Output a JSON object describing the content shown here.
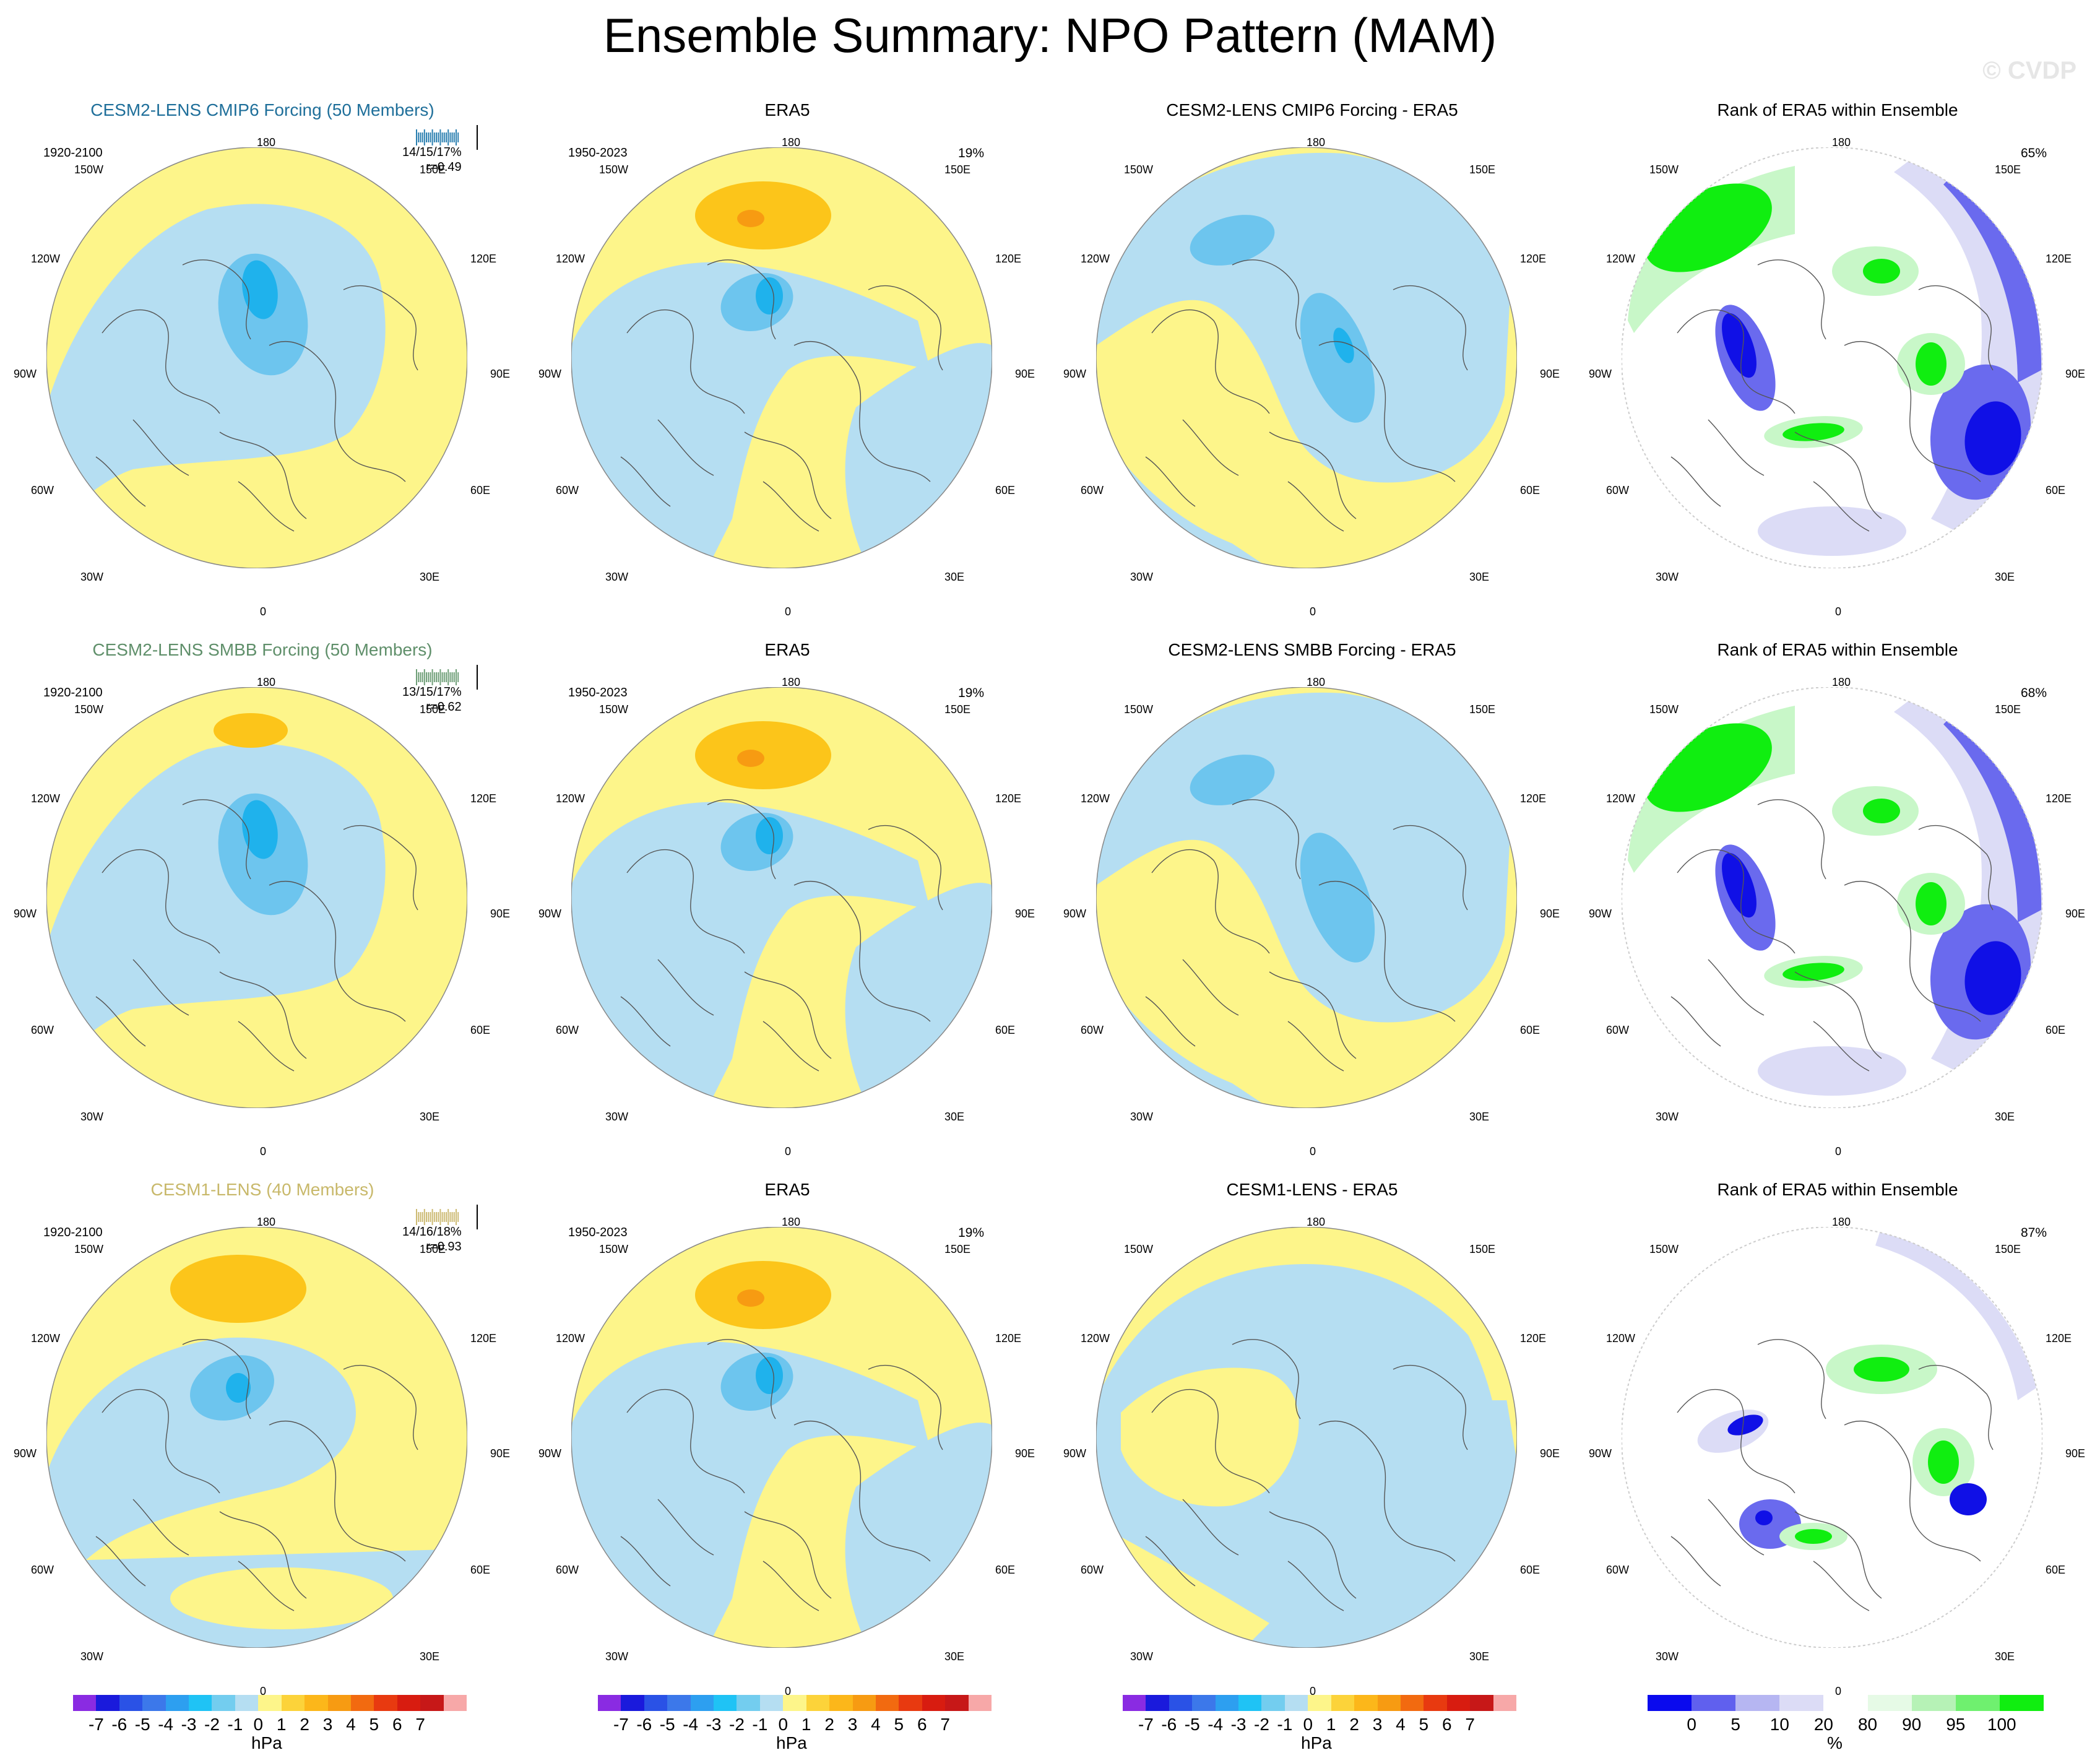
{
  "header": {
    "title": "Ensemble Summary: NPO Pattern (MAM)",
    "watermark": "© CVDP"
  },
  "colors": {
    "land_yellow": "#fdf58a",
    "light_blue": "#b5def2",
    "mid_blue": "#6dc5ee",
    "strong_blue": "#1fb2ec",
    "orange": "#fcc51a",
    "dark_orange": "#f79b12"
  },
  "lon_labels": {
    "top": "180",
    "bottom": "0",
    "left_upper": "150W",
    "right_upper": "150E",
    "left_mid_upper": "120W",
    "right_mid_upper": "120E",
    "left_mid": "90W",
    "right_mid": "90E",
    "left_mid_lower": "60W",
    "right_mid_lower": "60E",
    "left_lower": "30W",
    "right_lower": "30E"
  },
  "rows": [
    {
      "model": {
        "title": "CESM2-LENS CMIP6 Forcing (50 Members)",
        "years": "1920-2100",
        "stats_line1": "14/15/17%",
        "stats_line2": "r=0.49"
      },
      "obs": {
        "title": "ERA5",
        "years": "1950-2023",
        "pct": "19%"
      },
      "diff": {
        "title": "CESM2-LENS CMIP6 Forcing - ERA5"
      },
      "rank": {
        "title": "Rank of ERA5 within Ensemble",
        "pct": "65%"
      }
    },
    {
      "model": {
        "title": "CESM2-LENS SMBB Forcing (50 Members)",
        "years": "1920-2100",
        "stats_line1": "13/15/17%",
        "stats_line2": "r=0.62"
      },
      "obs": {
        "title": "ERA5",
        "years": "1950-2023",
        "pct": "19%"
      },
      "diff": {
        "title": "CESM2-LENS SMBB Forcing - ERA5"
      },
      "rank": {
        "title": "Rank of ERA5 within Ensemble",
        "pct": "68%"
      }
    },
    {
      "model": {
        "title": "CESM1-LENS (40 Members)",
        "years": "1920-2100",
        "stats_line1": "14/16/18%",
        "stats_line2": "r=0.93"
      },
      "obs": {
        "title": "ERA5",
        "years": "1950-2023",
        "pct": "19%"
      },
      "diff": {
        "title": "CESM1-LENS - ERA5"
      },
      "rank": {
        "title": "Rank of ERA5 within Ensemble",
        "pct": "87%"
      }
    }
  ],
  "colorbars": {
    "hpa": {
      "labels": [
        "-7",
        "-6",
        "-5",
        "-4",
        "-3",
        "-2",
        "-1",
        "0",
        "1",
        "2",
        "3",
        "4",
        "5",
        "6",
        "7"
      ],
      "unit": "hPa",
      "colors": [
        "#8a2be2",
        "#1a1adc",
        "#2a52e6",
        "#3c78ea",
        "#2d9ff0",
        "#1fc3f5",
        "#73cdef",
        "#b5def2",
        "#fdf58a",
        "#fcd33a",
        "#fcb71a",
        "#f79b12",
        "#f26a10",
        "#e83a10",
        "#d81c10",
        "#c71818",
        "#f7a8a8"
      ]
    },
    "rank": {
      "labels": [
        "0",
        "5",
        "10",
        "20",
        "80",
        "90",
        "95",
        "100"
      ],
      "unit": "%",
      "colors": [
        "#0a0aee",
        "#6060ee",
        "#b6b6f2",
        "#dcdcf6",
        "#ffffff",
        "#e6fae6",
        "#b6f2b6",
        "#6ff06f",
        "#10ee10"
      ]
    }
  }
}
